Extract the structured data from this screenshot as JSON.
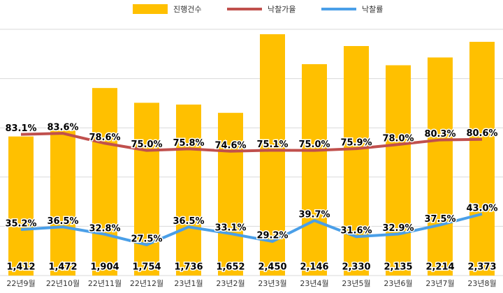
{
  "chart_data": {
    "type": "combo",
    "categories": [
      "22년9월",
      "22년10월",
      "22년11월",
      "22년12월",
      "23년1월",
      "23년2월",
      "23년3월",
      "23년4월",
      "23년5월",
      "23년6월",
      "23년7월",
      "23년8월"
    ],
    "series": [
      {
        "name": "진행건수",
        "type": "bar",
        "color": "#FFC000",
        "values": [
          1412,
          1472,
          1904,
          1754,
          1736,
          1652,
          2450,
          2146,
          2330,
          2135,
          2214,
          2373
        ],
        "value_labels": [
          "1,412",
          "1,472",
          "1,904",
          "1,754",
          "1,736",
          "1,652",
          "2,450",
          "2,146",
          "2,330",
          "2,135",
          "2,214",
          "2,373"
        ]
      },
      {
        "name": "낙찰가율",
        "type": "line",
        "axis": "y2",
        "color": "#C0504D",
        "values": [
          83.1,
          83.6,
          78.6,
          75.0,
          75.8,
          74.6,
          75.1,
          75.0,
          75.9,
          78.0,
          80.3,
          80.6
        ],
        "value_labels": [
          "83.1%",
          "83.6%",
          "78.6%",
          "75.0%",
          "75.8%",
          "74.6%",
          "75.1%",
          "75.0%",
          "75.9%",
          "78.0%",
          "80.3%",
          "80.6%"
        ]
      },
      {
        "name": "낙찰률",
        "type": "line",
        "axis": "y2",
        "color": "#4A9FE8",
        "values": [
          35.2,
          36.5,
          32.8,
          27.5,
          36.5,
          33.1,
          29.2,
          39.7,
          31.6,
          32.9,
          37.5,
          43.0
        ],
        "value_labels": [
          "35.2%",
          "36.5%",
          "32.8%",
          "27.5%",
          "36.5%",
          "33.1%",
          "29.2%",
          "39.7%",
          "31.6%",
          "32.9%",
          "37.5%",
          "43.0%"
        ]
      }
    ],
    "ylim": [
      0,
      2500
    ],
    "yticks": [
      0,
      500,
      1000,
      1500,
      2000,
      2500
    ],
    "y2lim": [
      12,
      136
    ],
    "grid": true
  }
}
